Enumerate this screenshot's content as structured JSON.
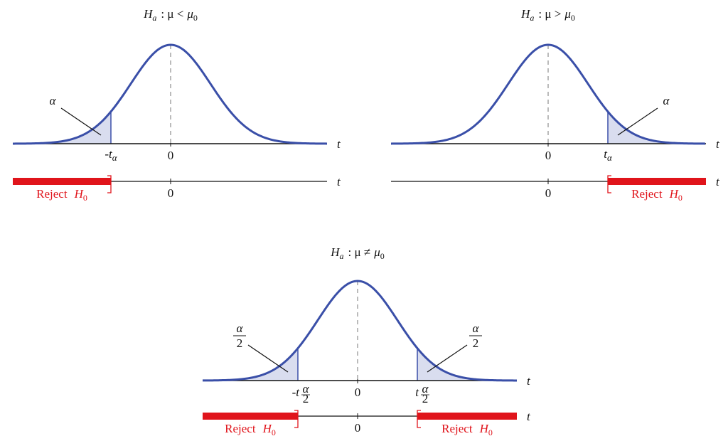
{
  "panels": [
    {
      "title": {
        "h": "H",
        "h_sub": "a",
        "relation": ": μ <",
        "mu": "μ",
        "mu_sub": "0"
      },
      "axis_label": "t",
      "zero": "0",
      "tails": [
        {
          "alpha": "α",
          "critical": {
            "main": "-t",
            "sub": "α"
          },
          "reject": {
            "text": "Reject",
            "h": "H",
            "h_sub": "0"
          }
        }
      ],
      "lower_zero": "0",
      "lower_axis_label": "t"
    },
    {
      "title": {
        "h": "H",
        "h_sub": "a",
        "relation": ": μ >",
        "mu": "μ",
        "mu_sub": "0"
      },
      "axis_label": "t",
      "zero": "0",
      "tails": [
        {
          "alpha": "α",
          "critical": {
            "main": "t",
            "sub": "α"
          },
          "reject": {
            "text": "Reject",
            "h": "H",
            "h_sub": "0"
          }
        }
      ],
      "lower_zero": "0",
      "lower_axis_label": "t"
    },
    {
      "title": {
        "h": "H",
        "h_sub": "a",
        "relation": ": μ ≠",
        "mu": "μ",
        "mu_sub": "0"
      },
      "axis_label": "t",
      "zero": "0",
      "tails": [
        {
          "alpha": {
            "num": "α",
            "den": "2"
          },
          "critical": {
            "main": "-t",
            "sub_num": "α",
            "sub_den": "2"
          },
          "reject": {
            "text": "Reject",
            "h": "H",
            "h_sub": "0"
          }
        },
        {
          "alpha": {
            "num": "α",
            "den": "2"
          },
          "critical": {
            "main": "t",
            "sub_num": "α",
            "sub_den": "2"
          },
          "reject": {
            "text": "Reject",
            "h": "H",
            "h_sub": "0"
          }
        }
      ],
      "lower_zero": "0",
      "lower_axis_label": "t"
    }
  ]
}
